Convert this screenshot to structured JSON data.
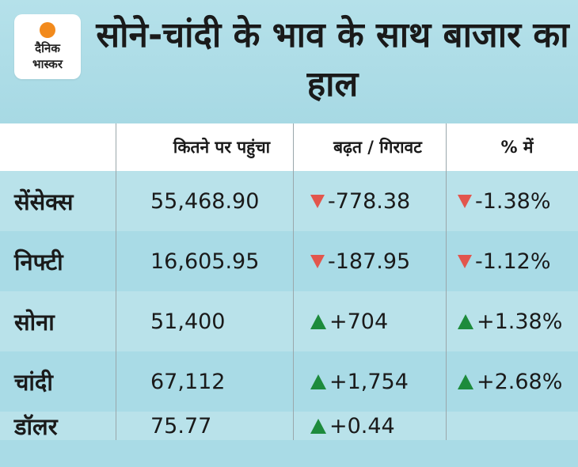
{
  "logo": {
    "line1": "दैनिक",
    "line2": "भास्कर"
  },
  "title": "सोने-चांदी के भाव के साथ बाजार का हाल",
  "table": {
    "headers": [
      "",
      "कितने पर पहुंचा",
      "बढ़त / गिरावट",
      "% में"
    ],
    "rows": [
      {
        "name": "सेंसेक्स",
        "value": "55,468.90",
        "change": "-778.38",
        "change_dir": "down",
        "percent": "-1.38%",
        "percent_dir": "down"
      },
      {
        "name": "निफ्टी",
        "value": "16,605.95",
        "change": "-187.95",
        "change_dir": "down",
        "percent": "-1.12%",
        "percent_dir": "down"
      },
      {
        "name": "सोना",
        "value": "51,400",
        "change": "+704",
        "change_dir": "up",
        "percent": "+1.38%",
        "percent_dir": "up"
      },
      {
        "name": "चांदी",
        "value": "67,112",
        "change": "+1,754",
        "change_dir": "up",
        "percent": "+2.68%",
        "percent_dir": "up"
      },
      {
        "name": "डॉलर",
        "value": "75.77",
        "change": "+0.44",
        "change_dir": "up",
        "percent": "",
        "percent_dir": ""
      }
    ]
  },
  "colors": {
    "background": "#a9dbe6",
    "up": "#1d8b3c",
    "down": "#e2564d",
    "logo_sun": "#f28a1c"
  }
}
